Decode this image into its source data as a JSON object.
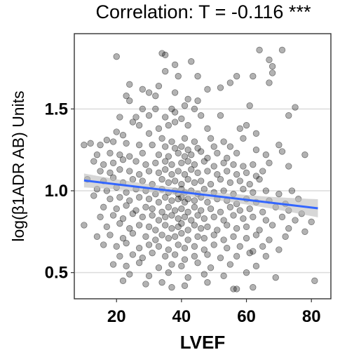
{
  "chart_data": {
    "type": "scatter",
    "title": "Correlation: T = -0.116 ***",
    "xlabel": "LVEF",
    "ylabel": "log(β1ADR AB) Units",
    "xlim": [
      7,
      86
    ],
    "ylim": [
      0.34,
      1.96
    ],
    "xticks": [
      20,
      40,
      60,
      80
    ],
    "yticks": [
      0.5,
      1.0,
      1.5
    ],
    "ytick_labels": [
      "0.5",
      "1.0",
      "1.5"
    ],
    "grid": "horizontal major lines",
    "point_color": "#000000",
    "point_alpha": 0.3,
    "fit_line": {
      "x": [
        10,
        82
      ],
      "y": [
        1.063,
        0.893
      ],
      "color": "#3366ff",
      "band_color": "#bdbdbd"
    },
    "points": [
      [
        20,
        1.82
      ],
      [
        34,
        1.84
      ],
      [
        35,
        1.83
      ],
      [
        43,
        1.79
      ],
      [
        38,
        1.77
      ],
      [
        64,
        1.86
      ],
      [
        71,
        1.86
      ],
      [
        67,
        1.8
      ],
      [
        68,
        1.76
      ],
      [
        68,
        1.72
      ],
      [
        62,
        1.7
      ],
      [
        35,
        1.73
      ],
      [
        45,
        1.7
      ],
      [
        57,
        1.7
      ],
      [
        24,
        1.65
      ],
      [
        39,
        1.7
      ],
      [
        33,
        1.64
      ],
      [
        28,
        1.62
      ],
      [
        38,
        1.6
      ],
      [
        48,
        1.62
      ],
      [
        52,
        1.63
      ],
      [
        55,
        1.66
      ],
      [
        67,
        1.66
      ],
      [
        30,
        1.6
      ],
      [
        32,
        1.58
      ],
      [
        42,
        1.56
      ],
      [
        23,
        1.58
      ],
      [
        24,
        1.55
      ],
      [
        45,
        1.55
      ],
      [
        41,
        1.52
      ],
      [
        28,
        1.5
      ],
      [
        32,
        1.5
      ],
      [
        37,
        1.5
      ],
      [
        38,
        1.48
      ],
      [
        44,
        1.5
      ],
      [
        21,
        1.45
      ],
      [
        26,
        1.45
      ],
      [
        30,
        1.46
      ],
      [
        35,
        1.45
      ],
      [
        40,
        1.44
      ],
      [
        46,
        1.46
      ],
      [
        52,
        1.46
      ],
      [
        73,
        1.46
      ],
      [
        75,
        1.51
      ],
      [
        61,
        1.52
      ],
      [
        25,
        1.42
      ],
      [
        27,
        1.4
      ],
      [
        33,
        1.38
      ],
      [
        36,
        1.4
      ],
      [
        38,
        1.42
      ],
      [
        42,
        1.4
      ],
      [
        48,
        1.38
      ],
      [
        58,
        1.38
      ],
      [
        60,
        1.4
      ],
      [
        63,
        1.35
      ],
      [
        20,
        1.36
      ],
      [
        22,
        1.34
      ],
      [
        30,
        1.35
      ],
      [
        34,
        1.32
      ],
      [
        37,
        1.3
      ],
      [
        41,
        1.32
      ],
      [
        44,
        1.3
      ],
      [
        49,
        1.32
      ],
      [
        53,
        1.3
      ],
      [
        59,
        1.32
      ],
      [
        17,
        1.31
      ],
      [
        12,
        1.29
      ],
      [
        15,
        1.28
      ],
      [
        19,
        1.3
      ],
      [
        23,
        1.29
      ],
      [
        27,
        1.28
      ],
      [
        31,
        1.28
      ],
      [
        35,
        1.27
      ],
      [
        38,
        1.26
      ],
      [
        40,
        1.27
      ],
      [
        42,
        1.25
      ],
      [
        45,
        1.26
      ],
      [
        50,
        1.27
      ],
      [
        55,
        1.27
      ],
      [
        70,
        1.28
      ],
      [
        10,
        1.28
      ],
      [
        14,
        1.22
      ],
      [
        18,
        1.23
      ],
      [
        21,
        1.22
      ],
      [
        24,
        1.21
      ],
      [
        28,
        1.23
      ],
      [
        33,
        1.22
      ],
      [
        36,
        1.21
      ],
      [
        39,
        1.23
      ],
      [
        41,
        1.21
      ],
      [
        43,
        1.22
      ],
      [
        46,
        1.24
      ],
      [
        48,
        1.2
      ],
      [
        51,
        1.23
      ],
      [
        54,
        1.2
      ],
      [
        57,
        1.23
      ],
      [
        66,
        1.22
      ],
      [
        71,
        1.24
      ],
      [
        78,
        1.22
      ],
      [
        63,
        1.25
      ],
      [
        13,
        1.18
      ],
      [
        16,
        1.16
      ],
      [
        19,
        1.17
      ],
      [
        22,
        1.19
      ],
      [
        26,
        1.18
      ],
      [
        29,
        1.16
      ],
      [
        32,
        1.17
      ],
      [
        35,
        1.18
      ],
      [
        37,
        1.16
      ],
      [
        40,
        1.17
      ],
      [
        42,
        1.18
      ],
      [
        44,
        1.16
      ],
      [
        47,
        1.18
      ],
      [
        50,
        1.15
      ],
      [
        53,
        1.17
      ],
      [
        56,
        1.16
      ],
      [
        59,
        1.15
      ],
      [
        62,
        1.16
      ],
      [
        67,
        1.17
      ],
      [
        73,
        1.15
      ],
      [
        15,
        1.12
      ],
      [
        18,
        1.11
      ],
      [
        21,
        1.13
      ],
      [
        24,
        1.12
      ],
      [
        27,
        1.1
      ],
      [
        30,
        1.12
      ],
      [
        33,
        1.11
      ],
      [
        35,
        1.13
      ],
      [
        37,
        1.1
      ],
      [
        39,
        1.12
      ],
      [
        41,
        1.1
      ],
      [
        43,
        1.13
      ],
      [
        45,
        1.11
      ],
      [
        48,
        1.12
      ],
      [
        51,
        1.1
      ],
      [
        54,
        1.12
      ],
      [
        57,
        1.1
      ],
      [
        60,
        1.11
      ],
      [
        63,
        1.09
      ],
      [
        65,
        1.12
      ],
      [
        11,
        1.07
      ],
      [
        16,
        1.06
      ],
      [
        19,
        1.08
      ],
      [
        22,
        1.05
      ],
      [
        25,
        1.07
      ],
      [
        28,
        1.06
      ],
      [
        31,
        1.04
      ],
      [
        34,
        1.07
      ],
      [
        36,
        1.05
      ],
      [
        38,
        1.06
      ],
      [
        40,
        1.04
      ],
      [
        42,
        1.07
      ],
      [
        44,
        1.05
      ],
      [
        46,
        1.06
      ],
      [
        49,
        1.04
      ],
      [
        52,
        1.07
      ],
      [
        55,
        1.05
      ],
      [
        58,
        1.06
      ],
      [
        61,
        1.04
      ],
      [
        64,
        1.07
      ],
      [
        14,
        1.01
      ],
      [
        17,
        1.0
      ],
      [
        20,
        1.02
      ],
      [
        23,
        0.99
      ],
      [
        26,
        1.01
      ],
      [
        29,
        1.0
      ],
      [
        32,
        0.98
      ],
      [
        34,
        1.01
      ],
      [
        36,
        0.99
      ],
      [
        38,
        1.0
      ],
      [
        39,
        0.98
      ],
      [
        40,
        1.01
      ],
      [
        41,
        0.99
      ],
      [
        43,
        1.0
      ],
      [
        45,
        0.98
      ],
      [
        47,
        1.01
      ],
      [
        50,
        0.99
      ],
      [
        53,
        1.0
      ],
      [
        56,
        0.98
      ],
      [
        59,
        1.01
      ],
      [
        62,
        0.99
      ],
      [
        66,
        1.0
      ],
      [
        70,
        0.98
      ],
      [
        74,
        1.0
      ],
      [
        13,
        0.97
      ],
      [
        18,
        0.95
      ],
      [
        21,
        0.96
      ],
      [
        24,
        0.94
      ],
      [
        27,
        0.96
      ],
      [
        30,
        0.95
      ],
      [
        33,
        0.93
      ],
      [
        35,
        0.96
      ],
      [
        37,
        0.94
      ],
      [
        39,
        0.95
      ],
      [
        40,
        0.96
      ],
      [
        41,
        0.93
      ],
      [
        42,
        0.95
      ],
      [
        44,
        0.94
      ],
      [
        46,
        0.96
      ],
      [
        48,
        0.93
      ],
      [
        51,
        0.95
      ],
      [
        54,
        0.94
      ],
      [
        57,
        0.92
      ],
      [
        60,
        0.95
      ],
      [
        63,
        0.93
      ],
      [
        67,
        0.94
      ],
      [
        72,
        0.92
      ],
      [
        76,
        0.95
      ],
      [
        16,
        0.9
      ],
      [
        20,
        0.89
      ],
      [
        23,
        0.91
      ],
      [
        26,
        0.88
      ],
      [
        29,
        0.9
      ],
      [
        31,
        0.89
      ],
      [
        34,
        0.87
      ],
      [
        36,
        0.9
      ],
      [
        38,
        0.88
      ],
      [
        40,
        0.89
      ],
      [
        42,
        0.87
      ],
      [
        44,
        0.9
      ],
      [
        46,
        0.88
      ],
      [
        49,
        0.89
      ],
      [
        52,
        0.87
      ],
      [
        55,
        0.9
      ],
      [
        58,
        0.88
      ],
      [
        61,
        0.89
      ],
      [
        65,
        0.87
      ],
      [
        69,
        0.9
      ],
      [
        73,
        0.88
      ],
      [
        77,
        0.86
      ],
      [
        15,
        0.84
      ],
      [
        19,
        0.85
      ],
      [
        22,
        0.83
      ],
      [
        25,
        0.86
      ],
      [
        28,
        0.84
      ],
      [
        31,
        0.85
      ],
      [
        33,
        0.82
      ],
      [
        35,
        0.84
      ],
      [
        37,
        0.85
      ],
      [
        39,
        0.83
      ],
      [
        41,
        0.84
      ],
      [
        43,
        0.82
      ],
      [
        45,
        0.85
      ],
      [
        47,
        0.83
      ],
      [
        50,
        0.84
      ],
      [
        53,
        0.82
      ],
      [
        56,
        0.85
      ],
      [
        59,
        0.83
      ],
      [
        62,
        0.84
      ],
      [
        66,
        0.82
      ],
      [
        71,
        0.84
      ],
      [
        75,
        0.82
      ],
      [
        80,
        0.81
      ],
      [
        10,
        0.79
      ],
      [
        17,
        0.78
      ],
      [
        21,
        0.8
      ],
      [
        24,
        0.77
      ],
      [
        27,
        0.79
      ],
      [
        30,
        0.78
      ],
      [
        32,
        0.76
      ],
      [
        35,
        0.79
      ],
      [
        37,
        0.77
      ],
      [
        39,
        0.78
      ],
      [
        40,
        0.8
      ],
      [
        42,
        0.76
      ],
      [
        44,
        0.79
      ],
      [
        46,
        0.77
      ],
      [
        48,
        0.78
      ],
      [
        51,
        0.76
      ],
      [
        54,
        0.79
      ],
      [
        57,
        0.77
      ],
      [
        60,
        0.78
      ],
      [
        64,
        0.76
      ],
      [
        68,
        0.79
      ],
      [
        73,
        0.77
      ],
      [
        78,
        0.75
      ],
      [
        14,
        0.72
      ],
      [
        18,
        0.73
      ],
      [
        22,
        0.71
      ],
      [
        25,
        0.74
      ],
      [
        29,
        0.72
      ],
      [
        32,
        0.7
      ],
      [
        34,
        0.73
      ],
      [
        36,
        0.71
      ],
      [
        38,
        0.72
      ],
      [
        40,
        0.74
      ],
      [
        42,
        0.7
      ],
      [
        45,
        0.72
      ],
      [
        47,
        0.71
      ],
      [
        50,
        0.73
      ],
      [
        53,
        0.7
      ],
      [
        56,
        0.72
      ],
      [
        60,
        0.71
      ],
      [
        63,
        0.73
      ],
      [
        67,
        0.7
      ],
      [
        72,
        0.72
      ],
      [
        16,
        0.67
      ],
      [
        20,
        0.66
      ],
      [
        23,
        0.68
      ],
      [
        27,
        0.65
      ],
      [
        30,
        0.67
      ],
      [
        33,
        0.66
      ],
      [
        36,
        0.64
      ],
      [
        39,
        0.67
      ],
      [
        41,
        0.65
      ],
      [
        44,
        0.66
      ],
      [
        47,
        0.64
      ],
      [
        50,
        0.67
      ],
      [
        54,
        0.65
      ],
      [
        58,
        0.66
      ],
      [
        62,
        0.63
      ],
      [
        65,
        0.66
      ],
      [
        70,
        0.64
      ],
      [
        21,
        0.6
      ],
      [
        25,
        0.61
      ],
      [
        28,
        0.59
      ],
      [
        31,
        0.62
      ],
      [
        35,
        0.6
      ],
      [
        38,
        0.61
      ],
      [
        41,
        0.58
      ],
      [
        44,
        0.6
      ],
      [
        48,
        0.61
      ],
      [
        52,
        0.59
      ],
      [
        57,
        0.6
      ],
      [
        61,
        0.62
      ],
      [
        66,
        0.6
      ],
      [
        19,
        0.55
      ],
      [
        23,
        0.54
      ],
      [
        27,
        0.56
      ],
      [
        33,
        0.53
      ],
      [
        37,
        0.55
      ],
      [
        40,
        0.54
      ],
      [
        45,
        0.56
      ],
      [
        49,
        0.53
      ],
      [
        55,
        0.55
      ],
      [
        63,
        0.54
      ],
      [
        24,
        0.49
      ],
      [
        30,
        0.48
      ],
      [
        36,
        0.5
      ],
      [
        42,
        0.47
      ],
      [
        47,
        0.49
      ],
      [
        53,
        0.48
      ],
      [
        60,
        0.5
      ],
      [
        69,
        0.47
      ],
      [
        22,
        0.45
      ],
      [
        34,
        0.44
      ],
      [
        29,
        0.43
      ],
      [
        41,
        0.42
      ],
      [
        48,
        0.44
      ],
      [
        56,
        0.4
      ],
      [
        57,
        0.4
      ],
      [
        62,
        0.41
      ],
      [
        81,
        0.45
      ],
      [
        37,
        0.41
      ]
    ]
  }
}
